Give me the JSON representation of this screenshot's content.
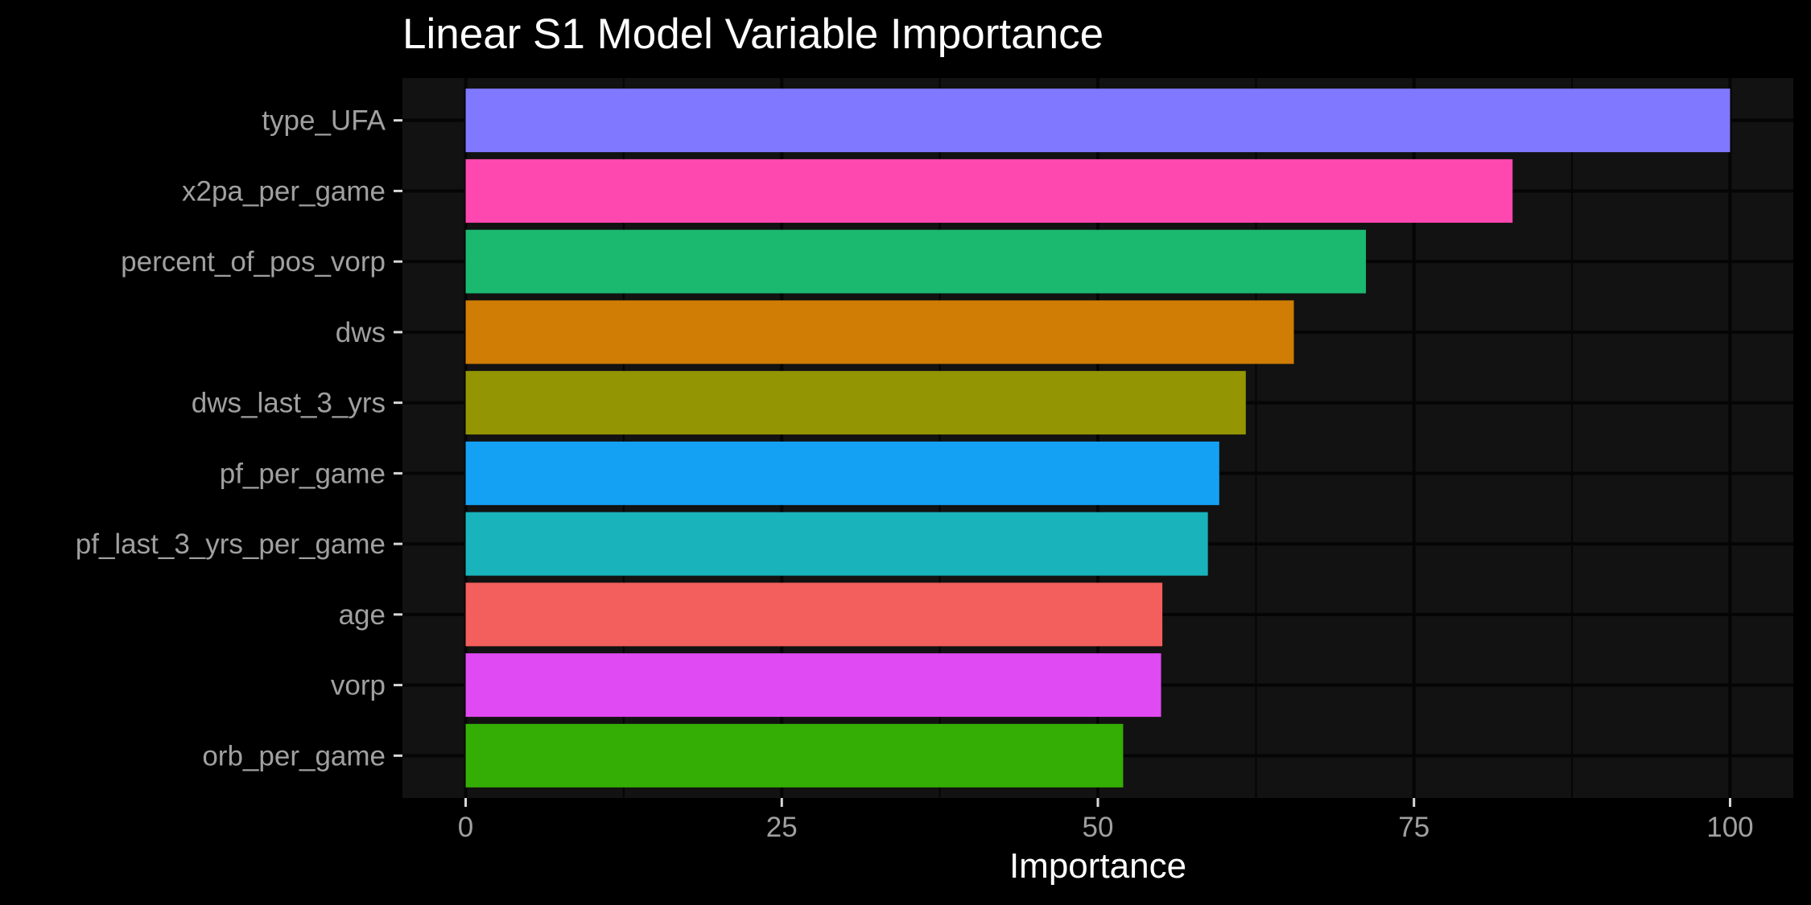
{
  "chart_data": {
    "type": "bar",
    "orientation": "horizontal",
    "title": "Linear S1 Model Variable Importance",
    "xlabel": "Importance",
    "ylabel": "",
    "xlim": [
      -5,
      105
    ],
    "xticks": [
      0,
      25,
      50,
      75,
      100
    ],
    "grid": true,
    "legend": "none",
    "categories": [
      "type_UFA",
      "x2pa_per_game",
      "percent_of_pos_vorp",
      "dws",
      "dws_last_3_yrs",
      "pf_per_game",
      "pf_last_3_yrs_per_game",
      "age",
      "vorp",
      "orb_per_game"
    ],
    "values": [
      100,
      82.8,
      71.2,
      65.5,
      61.7,
      59.6,
      58.7,
      55.1,
      55.0,
      52.0
    ],
    "colors": [
      "#8078ff",
      "#ff47b0",
      "#1bb870",
      "#cf7d05",
      "#939503",
      "#14a1f4",
      "#19b3bb",
      "#f35f5c",
      "#e04af2",
      "#34ae04"
    ]
  }
}
